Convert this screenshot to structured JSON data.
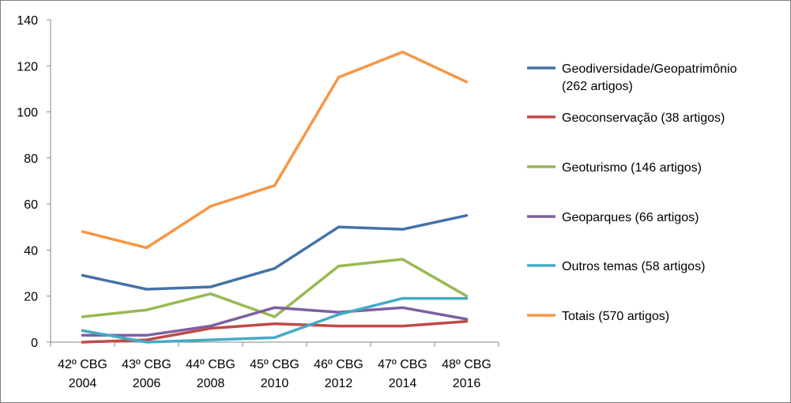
{
  "chart_data": {
    "type": "line",
    "categories": [
      [
        "42º CBG",
        "2004"
      ],
      [
        "43º CBG",
        "2006"
      ],
      [
        "44º CBG",
        "2008"
      ],
      [
        "45º CBG",
        "2010"
      ],
      [
        "46º CBG",
        "2012"
      ],
      [
        "47º CBG",
        "2014"
      ],
      [
        "48º CBG",
        "2016"
      ]
    ],
    "ylim": [
      0,
      140
    ],
    "yticks": [
      0,
      20,
      40,
      60,
      80,
      100,
      120,
      140
    ],
    "grid": false,
    "legend_position": "right",
    "series": [
      {
        "name": [
          "Geodiversidade/Geopatrimônio",
          "(262 artigos)"
        ],
        "color": "#4472A8",
        "values": [
          29,
          23,
          24,
          32,
          50,
          49,
          55
        ]
      },
      {
        "name": [
          "Geoconservação (38 artigos)"
        ],
        "color": "#BE4B48",
        "values": [
          0,
          1,
          6,
          8,
          7,
          7,
          9
        ]
      },
      {
        "name": [
          "Geoturismo (146 artigos)"
        ],
        "color": "#98B954",
        "values": [
          11,
          14,
          21,
          11,
          33,
          36,
          20
        ]
      },
      {
        "name": [
          "Geoparques (66 artigos)"
        ],
        "color": "#7D60A0",
        "values": [
          3,
          3,
          7,
          15,
          13,
          15,
          10
        ]
      },
      {
        "name": [
          "Outros temas (58 artigos)"
        ],
        "color": "#46AAC5",
        "values": [
          5,
          0,
          1,
          2,
          12,
          19,
          19
        ]
      },
      {
        "name": [
          "Totais (570 artigos)"
        ],
        "color": "#F79646",
        "values": [
          48,
          41,
          59,
          68,
          115,
          126,
          113
        ]
      }
    ]
  }
}
